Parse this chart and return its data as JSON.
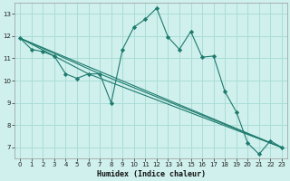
{
  "xlabel": "Humidex (Indice chaleur)",
  "background_color": "#cff0ec",
  "grid_color": "#aaddd8",
  "line_color": "#1e7a6e",
  "xlim": [
    -0.5,
    23.5
  ],
  "ylim": [
    6.5,
    13.5
  ],
  "xticks": [
    0,
    1,
    2,
    3,
    4,
    5,
    6,
    7,
    8,
    9,
    10,
    11,
    12,
    13,
    14,
    15,
    16,
    17,
    18,
    19,
    20,
    21,
    22,
    23
  ],
  "yticks": [
    7,
    8,
    9,
    10,
    11,
    12,
    13
  ],
  "main_x": [
    0,
    1,
    2,
    3,
    4,
    5,
    6,
    7,
    8,
    9,
    10,
    11,
    12,
    13,
    14,
    15,
    16,
    17,
    18,
    19,
    20,
    21,
    22,
    23
  ],
  "main_y": [
    11.9,
    11.4,
    11.3,
    11.1,
    10.3,
    10.1,
    10.3,
    10.3,
    9.0,
    11.4,
    12.4,
    12.75,
    13.25,
    11.95,
    11.4,
    12.2,
    11.05,
    11.1,
    9.5,
    8.6,
    7.2,
    6.7,
    7.3,
    7.0
  ],
  "trend_lines": [
    {
      "x": [
        0,
        23
      ],
      "y": [
        11.9,
        7.0
      ]
    },
    {
      "x": [
        0,
        7,
        23
      ],
      "y": [
        11.9,
        10.3,
        7.0
      ]
    },
    {
      "x": [
        0,
        6,
        23
      ],
      "y": [
        11.9,
        10.3,
        7.0
      ]
    }
  ]
}
